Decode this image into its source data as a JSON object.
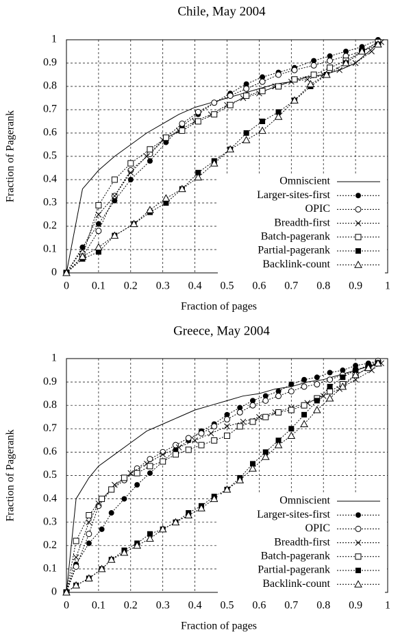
{
  "chart_data": [
    {
      "type": "line",
      "title": "Chile, May 2004",
      "x_label": "Fraction of pages",
      "y_label": "Fraction of Pagerank",
      "xlim": [
        0,
        1
      ],
      "ylim": [
        0,
        1
      ],
      "xticks": [
        0,
        0.1,
        0.2,
        0.3,
        0.4,
        0.5,
        0.6,
        0.7,
        0.8,
        0.9,
        1
      ],
      "yticks": [
        0,
        0.1,
        0.2,
        0.3,
        0.4,
        0.5,
        0.6,
        0.7,
        0.8,
        0.9,
        1
      ],
      "grid": true,
      "legend": "lower right",
      "series": [
        {
          "name": "Omniscient",
          "color": "#000000",
          "marker": "none",
          "line_style": "solid",
          "x": [
            0,
            0.05,
            0.1,
            0.15,
            0.2,
            0.25,
            0.3,
            0.35,
            0.4,
            0.45,
            0.5,
            0.55,
            0.6,
            0.65,
            0.7,
            0.75,
            0.8,
            0.85,
            0.9,
            0.95,
            0.98
          ],
          "values": [
            0,
            0.36,
            0.44,
            0.5,
            0.55,
            0.6,
            0.64,
            0.68,
            0.71,
            0.73,
            0.75,
            0.77,
            0.79,
            0.81,
            0.82,
            0.84,
            0.85,
            0.87,
            0.9,
            0.96,
            1
          ]
        },
        {
          "name": "Larger-sites-first",
          "color": "#000000",
          "marker": "filled-circle",
          "line_style": "dotted",
          "x": [
            0,
            0.05,
            0.1,
            0.15,
            0.2,
            0.26,
            0.31,
            0.36,
            0.41,
            0.46,
            0.51,
            0.56,
            0.61,
            0.66,
            0.71,
            0.77,
            0.82,
            0.87,
            0.92,
            0.97
          ],
          "values": [
            0,
            0.11,
            0.21,
            0.31,
            0.4,
            0.48,
            0.56,
            0.63,
            0.68,
            0.73,
            0.77,
            0.81,
            0.84,
            0.86,
            0.88,
            0.91,
            0.93,
            0.95,
            0.97,
            1
          ]
        },
        {
          "name": "OPIC",
          "color": "#000000",
          "marker": "circle",
          "line_style": "dotted",
          "x": [
            0,
            0.05,
            0.1,
            0.15,
            0.2,
            0.26,
            0.31,
            0.36,
            0.41,
            0.46,
            0.51,
            0.56,
            0.61,
            0.66,
            0.71,
            0.77,
            0.82,
            0.87,
            0.92,
            0.97
          ],
          "values": [
            0,
            0.07,
            0.18,
            0.33,
            0.44,
            0.51,
            0.58,
            0.64,
            0.69,
            0.73,
            0.76,
            0.79,
            0.82,
            0.85,
            0.87,
            0.89,
            0.91,
            0.93,
            0.95,
            0.99
          ]
        },
        {
          "name": "Breadth-first",
          "color": "#000000",
          "marker": "x",
          "line_style": "dotted",
          "x": [
            0,
            0.05,
            0.1,
            0.15,
            0.2,
            0.25,
            0.3,
            0.35,
            0.4,
            0.45,
            0.5,
            0.55,
            0.6,
            0.65,
            0.7,
            0.75,
            0.8,
            0.85,
            0.9,
            0.95,
            0.98
          ],
          "values": [
            0,
            0.1,
            0.25,
            0.33,
            0.43,
            0.5,
            0.57,
            0.61,
            0.65,
            0.68,
            0.72,
            0.75,
            0.77,
            0.8,
            0.82,
            0.83,
            0.85,
            0.87,
            0.9,
            0.95,
            0.99
          ]
        },
        {
          "name": "Batch-pagerank",
          "color": "#000000",
          "marker": "square",
          "line_style": "dotted",
          "x": [
            0,
            0.05,
            0.1,
            0.15,
            0.2,
            0.26,
            0.31,
            0.36,
            0.41,
            0.46,
            0.51,
            0.56,
            0.61,
            0.66,
            0.71,
            0.77,
            0.82,
            0.87,
            0.92,
            0.97
          ],
          "values": [
            0,
            0.07,
            0.29,
            0.4,
            0.47,
            0.53,
            0.58,
            0.61,
            0.65,
            0.68,
            0.72,
            0.76,
            0.78,
            0.8,
            0.83,
            0.85,
            0.88,
            0.91,
            0.95,
            0.99
          ]
        },
        {
          "name": "Partial-pagerank",
          "color": "#000000",
          "marker": "filled-square",
          "line_style": "dotted",
          "x": [
            0,
            0.05,
            0.1,
            0.15,
            0.21,
            0.26,
            0.31,
            0.36,
            0.41,
            0.46,
            0.51,
            0.56,
            0.61,
            0.66,
            0.71,
            0.76,
            0.81,
            0.87,
            0.92,
            0.97
          ],
          "values": [
            0,
            0.06,
            0.09,
            0.16,
            0.21,
            0.26,
            0.3,
            0.36,
            0.43,
            0.48,
            0.53,
            0.6,
            0.65,
            0.69,
            0.74,
            0.8,
            0.85,
            0.9,
            0.95,
            0.98
          ]
        },
        {
          "name": "Backlink-count",
          "color": "#000000",
          "marker": "triangle",
          "line_style": "dotted",
          "x": [
            0,
            0.05,
            0.1,
            0.15,
            0.21,
            0.26,
            0.31,
            0.36,
            0.41,
            0.46,
            0.51,
            0.56,
            0.61,
            0.66,
            0.71,
            0.76,
            0.81,
            0.87,
            0.92,
            0.97
          ],
          "values": [
            0,
            0.07,
            0.11,
            0.16,
            0.21,
            0.27,
            0.32,
            0.36,
            0.41,
            0.47,
            0.53,
            0.57,
            0.61,
            0.67,
            0.74,
            0.81,
            0.85,
            0.9,
            0.95,
            0.98
          ]
        }
      ]
    },
    {
      "type": "line",
      "title": "Greece, May 2004",
      "x_label": "Fraction of pages",
      "y_label": "Fraction of Pagerank",
      "xlim": [
        0,
        1
      ],
      "ylim": [
        0,
        1
      ],
      "xticks": [
        0,
        0.1,
        0.2,
        0.3,
        0.4,
        0.5,
        0.6,
        0.7,
        0.8,
        0.9,
        1
      ],
      "yticks": [
        0,
        0.1,
        0.2,
        0.3,
        0.4,
        0.5,
        0.6,
        0.7,
        0.8,
        0.9,
        1
      ],
      "grid": true,
      "legend": "lower right",
      "series": [
        {
          "name": "Omniscient",
          "color": "#000000",
          "marker": "none",
          "line_style": "solid",
          "x": [
            0,
            0.03,
            0.07,
            0.1,
            0.15,
            0.2,
            0.25,
            0.3,
            0.35,
            0.4,
            0.45,
            0.5,
            0.55,
            0.6,
            0.65,
            0.7,
            0.75,
            0.8,
            0.85,
            0.9,
            0.95,
            0.98
          ],
          "values": [
            0,
            0.4,
            0.49,
            0.54,
            0.59,
            0.64,
            0.69,
            0.72,
            0.75,
            0.78,
            0.8,
            0.82,
            0.84,
            0.85,
            0.87,
            0.88,
            0.9,
            0.91,
            0.93,
            0.95,
            0.97,
            0.99
          ]
        },
        {
          "name": "Larger-sites-first",
          "color": "#000000",
          "marker": "filled-circle",
          "line_style": "dotted",
          "x": [
            0,
            0.03,
            0.07,
            0.11,
            0.14,
            0.18,
            0.22,
            0.26,
            0.3,
            0.34,
            0.38,
            0.42,
            0.46,
            0.5,
            0.54,
            0.58,
            0.62,
            0.66,
            0.7,
            0.74,
            0.78,
            0.82,
            0.86,
            0.9,
            0.94,
            0.97
          ],
          "values": [
            0,
            0.12,
            0.21,
            0.27,
            0.34,
            0.4,
            0.46,
            0.51,
            0.56,
            0.61,
            0.65,
            0.69,
            0.72,
            0.76,
            0.79,
            0.82,
            0.84,
            0.86,
            0.89,
            0.91,
            0.92,
            0.94,
            0.95,
            0.97,
            0.98,
            0.99
          ]
        },
        {
          "name": "OPIC",
          "color": "#000000",
          "marker": "circle",
          "line_style": "dotted",
          "x": [
            0,
            0.03,
            0.07,
            0.1,
            0.14,
            0.18,
            0.22,
            0.26,
            0.3,
            0.34,
            0.38,
            0.42,
            0.46,
            0.5,
            0.54,
            0.58,
            0.62,
            0.66,
            0.7,
            0.74,
            0.78,
            0.82,
            0.86,
            0.9,
            0.94,
            0.97
          ],
          "values": [
            0,
            0.11,
            0.25,
            0.37,
            0.44,
            0.48,
            0.53,
            0.57,
            0.6,
            0.63,
            0.66,
            0.68,
            0.71,
            0.74,
            0.77,
            0.8,
            0.82,
            0.84,
            0.86,
            0.88,
            0.89,
            0.91,
            0.93,
            0.95,
            0.97,
            0.99
          ]
        },
        {
          "name": "Breadth-first",
          "color": "#000000",
          "marker": "x",
          "line_style": "dotted",
          "x": [
            0,
            0.03,
            0.07,
            0.1,
            0.15,
            0.2,
            0.25,
            0.3,
            0.35,
            0.4,
            0.45,
            0.5,
            0.55,
            0.6,
            0.65,
            0.7,
            0.75,
            0.8,
            0.85,
            0.9,
            0.95,
            0.98
          ],
          "values": [
            0,
            0.15,
            0.3,
            0.38,
            0.46,
            0.51,
            0.55,
            0.59,
            0.62,
            0.65,
            0.68,
            0.71,
            0.73,
            0.75,
            0.77,
            0.79,
            0.81,
            0.84,
            0.87,
            0.91,
            0.95,
            0.98
          ]
        },
        {
          "name": "Batch-pagerank",
          "color": "#000000",
          "marker": "square",
          "line_style": "dotted",
          "x": [
            0,
            0.03,
            0.07,
            0.11,
            0.14,
            0.18,
            0.22,
            0.26,
            0.3,
            0.34,
            0.38,
            0.42,
            0.46,
            0.5,
            0.54,
            0.58,
            0.62,
            0.66,
            0.7,
            0.74,
            0.78,
            0.82,
            0.86,
            0.9,
            0.94,
            0.97
          ],
          "values": [
            0,
            0.22,
            0.33,
            0.4,
            0.44,
            0.49,
            0.51,
            0.54,
            0.56,
            0.59,
            0.61,
            0.63,
            0.65,
            0.67,
            0.71,
            0.73,
            0.75,
            0.77,
            0.78,
            0.8,
            0.83,
            0.86,
            0.89,
            0.93,
            0.96,
            0.98
          ]
        },
        {
          "name": "Partial-pagerank",
          "color": "#000000",
          "marker": "filled-square",
          "line_style": "dotted",
          "x": [
            0,
            0.03,
            0.07,
            0.11,
            0.14,
            0.18,
            0.22,
            0.26,
            0.3,
            0.34,
            0.38,
            0.42,
            0.46,
            0.5,
            0.54,
            0.58,
            0.62,
            0.66,
            0.7,
            0.74,
            0.78,
            0.82,
            0.86,
            0.9,
            0.94,
            0.97
          ],
          "values": [
            0,
            0.03,
            0.06,
            0.1,
            0.14,
            0.18,
            0.21,
            0.25,
            0.27,
            0.3,
            0.34,
            0.37,
            0.41,
            0.44,
            0.49,
            0.55,
            0.6,
            0.65,
            0.7,
            0.76,
            0.82,
            0.88,
            0.92,
            0.95,
            0.97,
            0.98
          ]
        },
        {
          "name": "Backlink-count",
          "color": "#000000",
          "marker": "triangle",
          "line_style": "dotted",
          "x": [
            0,
            0.03,
            0.07,
            0.11,
            0.14,
            0.18,
            0.22,
            0.26,
            0.3,
            0.34,
            0.38,
            0.42,
            0.46,
            0.5,
            0.54,
            0.58,
            0.62,
            0.66,
            0.7,
            0.74,
            0.78,
            0.82,
            0.86,
            0.9,
            0.94,
            0.97
          ],
          "values": [
            0,
            0.03,
            0.06,
            0.1,
            0.14,
            0.17,
            0.2,
            0.23,
            0.27,
            0.3,
            0.33,
            0.36,
            0.4,
            0.44,
            0.48,
            0.53,
            0.58,
            0.63,
            0.67,
            0.72,
            0.78,
            0.83,
            0.88,
            0.93,
            0.96,
            0.98
          ]
        }
      ]
    }
  ]
}
